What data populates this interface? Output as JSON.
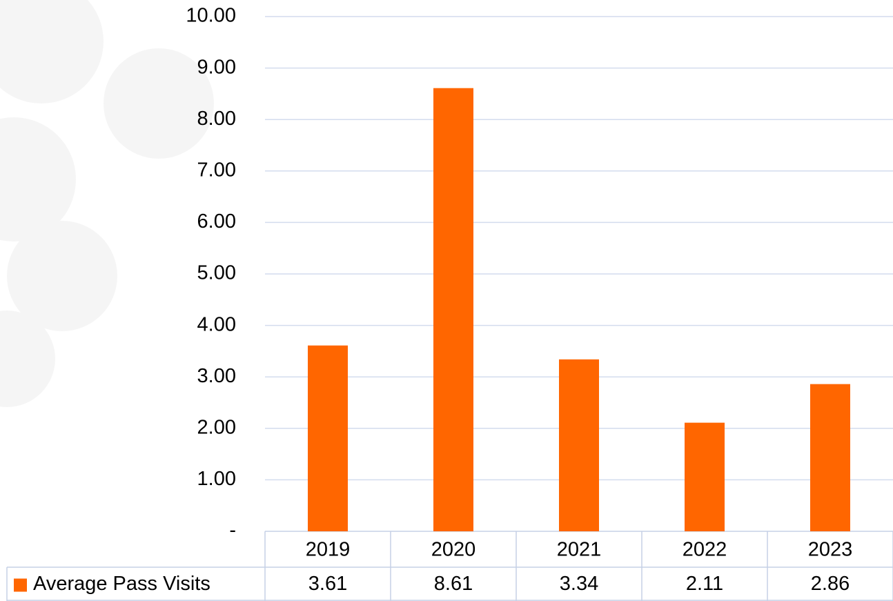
{
  "chart_data": {
    "type": "bar",
    "categories": [
      "2019",
      "2020",
      "2021",
      "2022",
      "2023"
    ],
    "series": [
      {
        "name": "Average Pass Visits",
        "color": "#ff6600",
        "values": [
          3.61,
          8.61,
          3.34,
          2.11,
          2.86
        ]
      }
    ],
    "ylim": [
      0,
      10
    ],
    "yticks": [
      {
        "value": 0,
        "label": "-"
      },
      {
        "value": 1,
        "label": "1.00"
      },
      {
        "value": 2,
        "label": "2.00"
      },
      {
        "value": 3,
        "label": "3.00"
      },
      {
        "value": 4,
        "label": "4.00"
      },
      {
        "value": 5,
        "label": "5.00"
      },
      {
        "value": 6,
        "label": "6.00"
      },
      {
        "value": 7,
        "label": "7.00"
      },
      {
        "value": 8,
        "label": "8.00"
      },
      {
        "value": 9,
        "label": "9.00"
      },
      {
        "value": 10,
        "label": "10.00"
      }
    ],
    "grid": true,
    "data_table": true
  }
}
